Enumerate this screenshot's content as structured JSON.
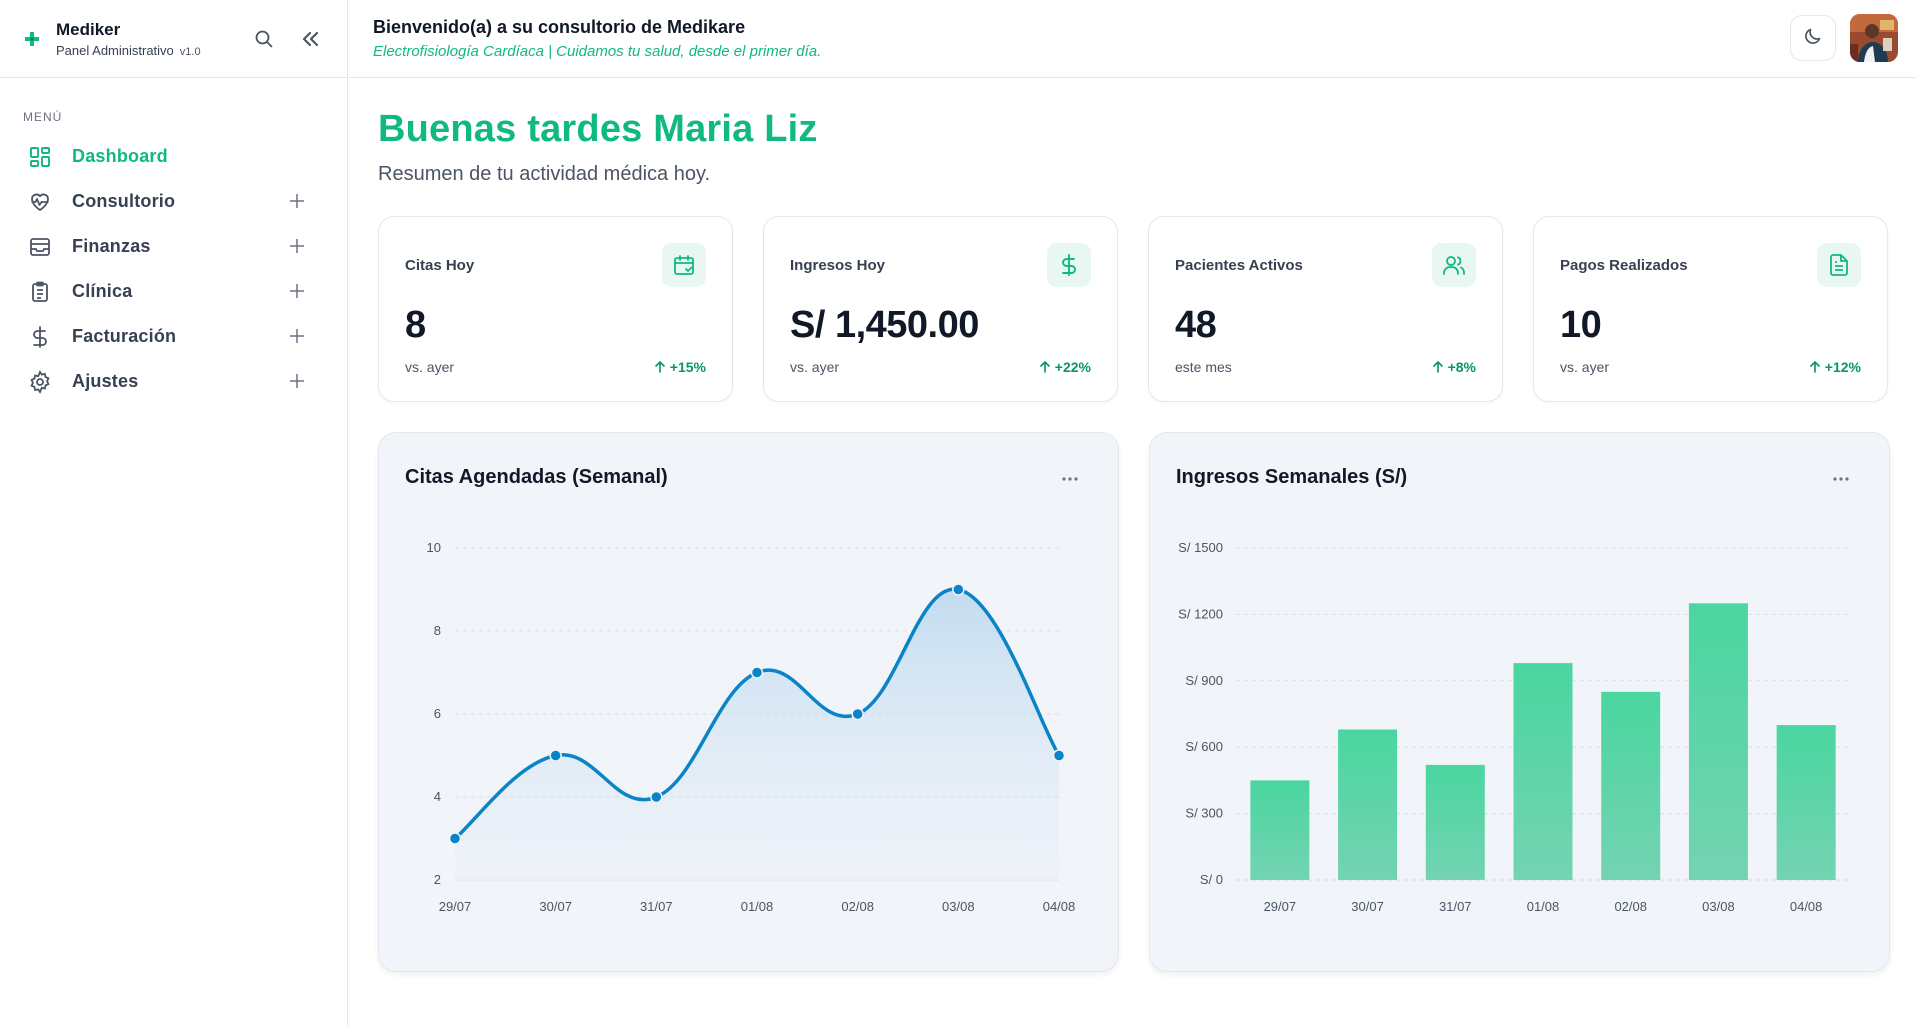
{
  "sidebar": {
    "brand_name": "Mediker",
    "brand_sub": "Panel Administrativo",
    "brand_version": "v1.0",
    "menu_label": "MENÚ",
    "items": [
      {
        "label": "Dashboard",
        "icon": "dashboard-icon",
        "active": true,
        "expandable": false
      },
      {
        "label": "Consultorio",
        "icon": "heart-pulse-icon",
        "active": false,
        "expandable": true
      },
      {
        "label": "Finanzas",
        "icon": "wallet-icon",
        "active": false,
        "expandable": true
      },
      {
        "label": "Clínica",
        "icon": "clipboard-icon",
        "active": false,
        "expandable": true
      },
      {
        "label": "Facturación",
        "icon": "dollar-icon",
        "active": false,
        "expandable": true
      },
      {
        "label": "Ajustes",
        "icon": "gear-icon",
        "active": false,
        "expandable": true
      }
    ]
  },
  "header": {
    "title": "Bienvenido(a) a su consultorio de Medikare",
    "subtitle": "Electrofisiología Cardíaca | Cuidamos tu salud, desde el primer día."
  },
  "main": {
    "greeting": "Buenas tardes Maria Liz",
    "summary": "Resumen de tu actividad médica hoy."
  },
  "stats": [
    {
      "label": "Citas Hoy",
      "value": "8",
      "note": "vs. ayer",
      "delta": "+15%",
      "icon": "calendar-check-icon"
    },
    {
      "label": "Ingresos Hoy",
      "value": "S/ 1,450.00",
      "note": "vs. ayer",
      "delta": "+22%",
      "icon": "dollar-icon"
    },
    {
      "label": "Pacientes Activos",
      "value": "48",
      "note": "este mes",
      "delta": "+8%",
      "icon": "users-icon"
    },
    {
      "label": "Pagos Realizados",
      "value": "10",
      "note": "vs. ayer",
      "delta": "+12%",
      "icon": "file-text-icon"
    }
  ],
  "colors": {
    "accent": "#10b981",
    "line": "#0a84c6",
    "bar_top": "#4ad6a0",
    "bar_bottom": "#74d3b2"
  },
  "chart_data": [
    {
      "type": "line",
      "title": "Citas Agendadas (Semanal)",
      "categories": [
        "29/07",
        "30/07",
        "31/07",
        "01/08",
        "02/08",
        "03/08",
        "04/08"
      ],
      "values": [
        3,
        5,
        4,
        7,
        6,
        9,
        5
      ],
      "ylim": [
        2,
        10
      ],
      "yticks": [
        "2",
        "4",
        "6",
        "8",
        "10"
      ],
      "grid": true
    },
    {
      "type": "bar",
      "title": "Ingresos Semanales (S/)",
      "categories": [
        "29/07",
        "30/07",
        "31/07",
        "01/08",
        "02/08",
        "03/08",
        "04/08"
      ],
      "values": [
        450,
        680,
        520,
        980,
        850,
        1250,
        700
      ],
      "ylim": [
        0,
        1500
      ],
      "yticks": [
        "S/ 0",
        "S/ 300",
        "S/ 600",
        "S/ 900",
        "S/ 1200",
        "S/ 1500"
      ],
      "grid": true
    }
  ]
}
